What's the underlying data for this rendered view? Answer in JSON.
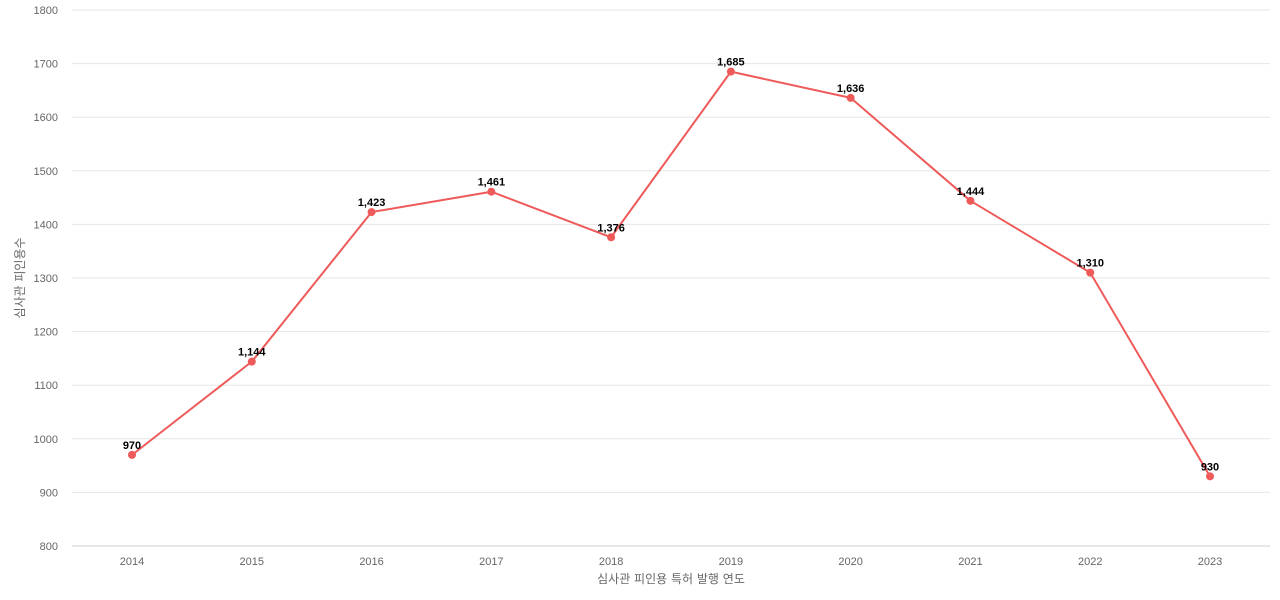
{
  "chart_data": {
    "type": "line",
    "title": "",
    "xlabel": "심사관 피인용 특허 발행 연도",
    "ylabel": "심사관 피인용수",
    "categories": [
      "2014",
      "2015",
      "2016",
      "2017",
      "2018",
      "2019",
      "2020",
      "2021",
      "2022",
      "2023"
    ],
    "series": [
      {
        "values": [
          970,
          1144,
          1423,
          1461,
          1376,
          1685,
          1636,
          1444,
          1310,
          930
        ],
        "data_labels": [
          "970",
          "1,144",
          "1,423",
          "1,461",
          "1,376",
          "1,685",
          "1,636",
          "1,444",
          "1,310",
          "930"
        ],
        "color": "#ee5a5a"
      }
    ],
    "ylim": [
      800,
      1800
    ],
    "yticks": [
      "800",
      "900",
      "1000",
      "1100",
      "1200",
      "1300",
      "1400",
      "1500",
      "1600",
      "1700",
      "1800"
    ],
    "grid": true,
    "legend": "none"
  }
}
